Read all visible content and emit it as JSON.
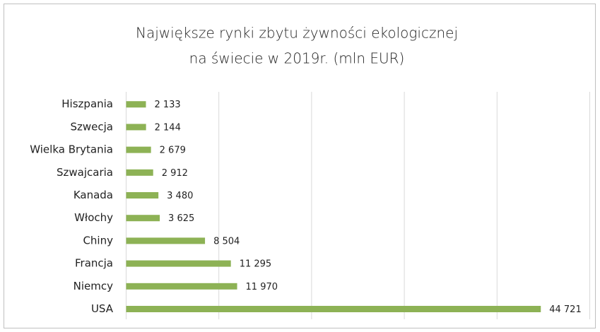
{
  "chart_data": {
    "type": "barh",
    "title": [
      "Największe rynki zbytu żywności ekologicznej",
      "na świecie w 2019r. (mln EUR)"
    ],
    "categories": [
      "Hiszpania",
      "Szwecja",
      "Wielka Brytania",
      "Szwajcaria",
      "Kanada",
      "Włochy",
      "Chiny",
      "Francja",
      "Niemcy",
      "USA"
    ],
    "values": [
      2133,
      2144,
      2679,
      2912,
      3480,
      3625,
      8504,
      11295,
      11970,
      44721
    ],
    "value_labels": [
      "2 133",
      "2 144",
      "2 679",
      "2 912",
      "3 480",
      "3 625",
      "8 504",
      "11 295",
      "11 970",
      "44 721"
    ],
    "color": "#8db255",
    "xlim": [
      0,
      50000
    ],
    "xticks": [
      0,
      10000,
      20000,
      30000,
      40000,
      50000
    ],
    "grid": true
  }
}
